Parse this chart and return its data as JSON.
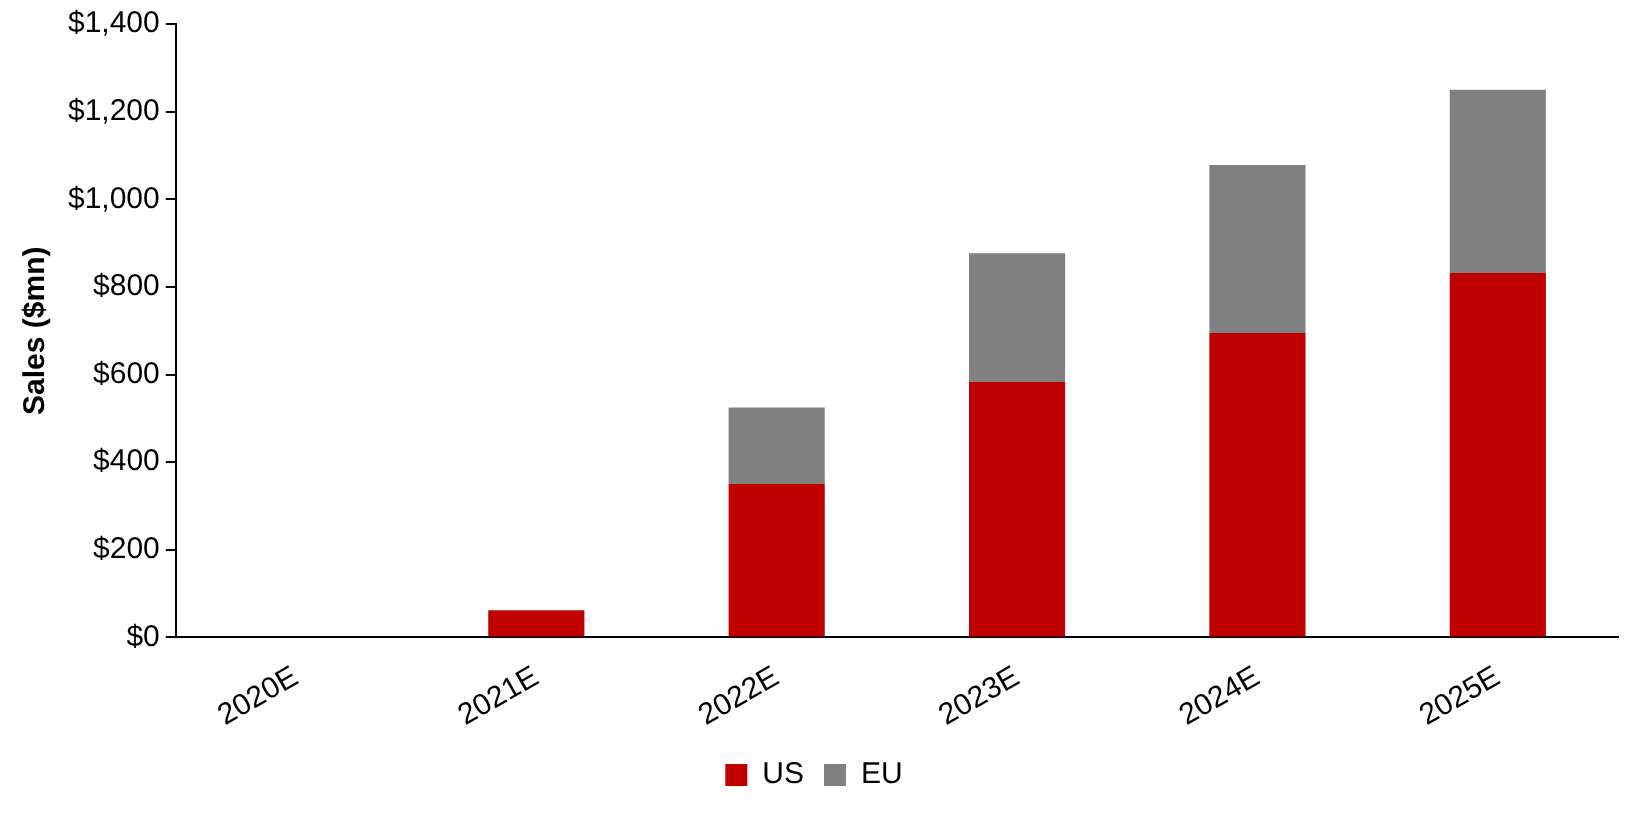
{
  "chart_data": {
    "type": "bar",
    "ylabel": "Sales ($mn)",
    "categories": [
      "2020E",
      "2021E",
      "2022E",
      "2023E",
      "2024E",
      "2025E"
    ],
    "stacked": true,
    "series": [
      {
        "name": "US",
        "color": "#c00000",
        "values": [
          0,
          62,
          350,
          583,
          695,
          832
        ]
      },
      {
        "name": "EU",
        "color": "#808080",
        "values": [
          0,
          0,
          175,
          294,
          383,
          418
        ]
      }
    ],
    "ylim": [
      0,
      1400
    ],
    "yticks": [
      {
        "value": 0,
        "label": "$0"
      },
      {
        "value": 200,
        "label": "$200"
      },
      {
        "value": 400,
        "label": "$400"
      },
      {
        "value": 600,
        "label": "$600"
      },
      {
        "value": 800,
        "label": "$800"
      },
      {
        "value": 1000,
        "label": "$1,000"
      },
      {
        "value": 1200,
        "label": "$1,200"
      },
      {
        "value": 1400,
        "label": "$1,400"
      }
    ],
    "grid": false,
    "legend": "bottom"
  }
}
